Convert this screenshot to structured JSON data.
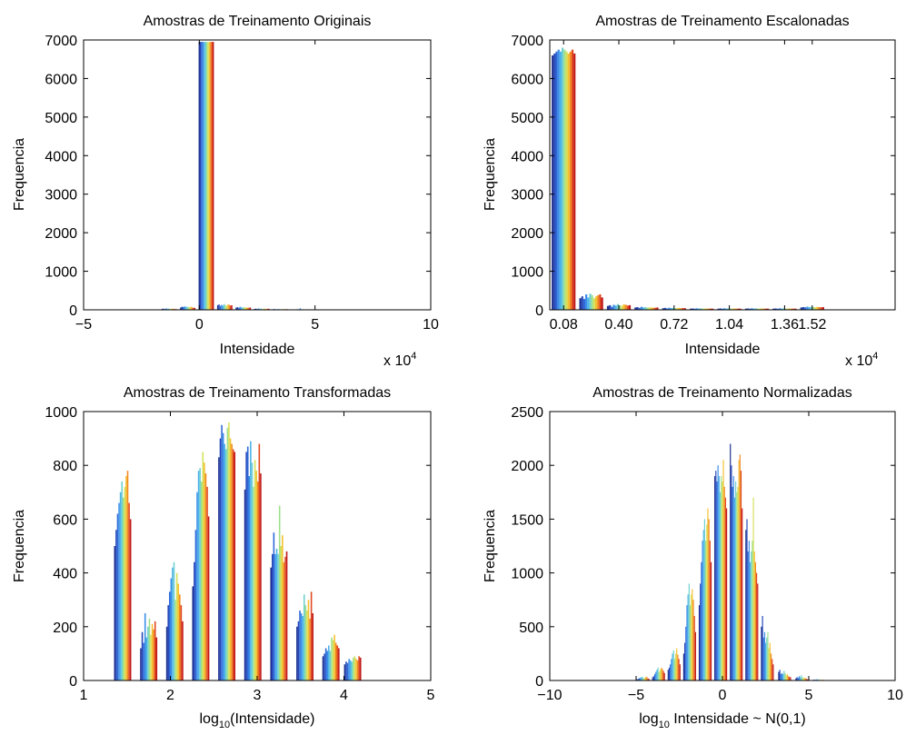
{
  "chart_data": [
    {
      "type": "bar",
      "title": "Amostras de Treinamento Originais",
      "xlabel": "Intensidade",
      "ylabel": "Frequencia",
      "x_exponent_base": "x 10",
      "x_exponent_power": "4",
      "xlim": [
        -5,
        10
      ],
      "ylim": [
        0,
        7000
      ],
      "xticks": [
        "−5",
        "0",
        "5",
        "10"
      ],
      "yticks": [
        "0",
        "1000",
        "2000",
        "3000",
        "4000",
        "5000",
        "6000",
        "7000"
      ],
      "groups": [
        {
          "x": -2.5,
          "values": [
            5,
            8,
            6,
            10,
            7,
            9,
            5,
            6,
            8,
            7,
            6,
            5
          ]
        },
        {
          "x": -1.3,
          "values": [
            25,
            30,
            20,
            35,
            28,
            32,
            22,
            26,
            30,
            24,
            20,
            18
          ]
        },
        {
          "x": -0.5,
          "values": [
            60,
            80,
            70,
            90,
            75,
            85,
            65,
            70,
            80,
            60,
            55,
            50
          ]
        },
        {
          "x": 0.3,
          "values": [
            6950,
            6950,
            6950,
            6950,
            6950,
            6950,
            6950,
            6950,
            6950,
            6950,
            6950,
            6950
          ]
        },
        {
          "x": 1.1,
          "values": [
            120,
            140,
            100,
            130,
            110,
            150,
            120,
            100,
            140,
            130,
            110,
            120
          ]
        },
        {
          "x": 1.9,
          "values": [
            60,
            70,
            50,
            80,
            60,
            70,
            55,
            65,
            60,
            50,
            55,
            60
          ]
        },
        {
          "x": 2.7,
          "values": [
            25,
            30,
            20,
            35,
            28,
            30,
            22,
            25,
            30,
            20,
            25,
            28
          ]
        },
        {
          "x": 3.5,
          "values": [
            15,
            20,
            12,
            18,
            15,
            20,
            12,
            15,
            18,
            14,
            16,
            15
          ]
        },
        {
          "x": 4.5,
          "values": [
            10,
            15,
            8,
            40,
            12,
            15,
            10,
            12,
            15,
            10,
            12,
            10
          ]
        },
        {
          "x": 5.6,
          "values": [
            5,
            8,
            6,
            10,
            7,
            9,
            5,
            6,
            8,
            7,
            6,
            5
          ]
        }
      ]
    },
    {
      "type": "bar",
      "title": "Amostras de Treinamento Escalonadas",
      "xlabel": "Intensidade",
      "ylabel": "Frequencia",
      "x_exponent_base": "x 10",
      "x_exponent_power": "4",
      "xlim": [
        0,
        2
      ],
      "ylim": [
        0,
        7000
      ],
      "xtick_values": [
        0.08,
        0.4,
        0.72,
        1.04,
        1.36,
        1.52
      ],
      "xticks": [
        "0.08",
        "0.40",
        "0.72",
        "1.04",
        "1.36",
        "1.52"
      ],
      "yticks": [
        "0",
        "1000",
        "2000",
        "3000",
        "4000",
        "5000",
        "6000",
        "7000"
      ],
      "groups": [
        {
          "x": 0.08,
          "values": [
            6600,
            6650,
            6700,
            6750,
            6700,
            6800,
            6750,
            6700,
            6650,
            6700,
            6750,
            6650
          ]
        },
        {
          "x": 0.24,
          "values": [
            300,
            350,
            280,
            400,
            320,
            420,
            380,
            300,
            350,
            380,
            400,
            320
          ]
        },
        {
          "x": 0.4,
          "values": [
            100,
            120,
            80,
            130,
            110,
            150,
            120,
            100,
            140,
            130,
            110,
            120
          ]
        },
        {
          "x": 0.56,
          "values": [
            60,
            70,
            50,
            80,
            60,
            70,
            55,
            65,
            60,
            50,
            55,
            60
          ]
        },
        {
          "x": 0.72,
          "values": [
            40,
            50,
            35,
            55,
            45,
            50,
            40,
            45,
            50,
            40,
            45,
            40
          ]
        },
        {
          "x": 0.88,
          "values": [
            30,
            35,
            28,
            40,
            32,
            38,
            30,
            32,
            35,
            30,
            32,
            30
          ]
        },
        {
          "x": 1.04,
          "values": [
            30,
            35,
            28,
            40,
            32,
            38,
            30,
            32,
            35,
            30,
            32,
            30
          ]
        },
        {
          "x": 1.2,
          "values": [
            30,
            35,
            28,
            40,
            32,
            38,
            30,
            32,
            35,
            30,
            32,
            30
          ]
        },
        {
          "x": 1.36,
          "values": [
            30,
            35,
            28,
            40,
            32,
            38,
            30,
            32,
            35,
            30,
            32,
            30
          ]
        },
        {
          "x": 1.52,
          "values": [
            60,
            70,
            65,
            80,
            70,
            75,
            70,
            65,
            75,
            70,
            65,
            70
          ]
        }
      ]
    },
    {
      "type": "bar",
      "title": "Amostras de Treinamento Transformadas",
      "xlabel_pre": "log",
      "xlabel_sub": "10",
      "xlabel_post": "(Intensidade)",
      "ylabel": "Frequencia",
      "xlim": [
        1,
        5
      ],
      "ylim": [
        0,
        1000
      ],
      "xticks": [
        "1",
        "2",
        "3",
        "4",
        "5"
      ],
      "yticks": [
        "0",
        "200",
        "400",
        "600",
        "800",
        "1000"
      ],
      "groups": [
        {
          "x": 1.45,
          "values": [
            500,
            560,
            620,
            660,
            700,
            740,
            680,
            720,
            760,
            780,
            660,
            600
          ]
        },
        {
          "x": 1.75,
          "values": [
            120,
            180,
            140,
            250,
            160,
            200,
            230,
            170,
            210,
            190,
            220,
            160
          ]
        },
        {
          "x": 2.05,
          "values": [
            200,
            280,
            330,
            380,
            420,
            440,
            300,
            400,
            360,
            320,
            280,
            220
          ]
        },
        {
          "x": 2.35,
          "values": [
            350,
            440,
            560,
            700,
            780,
            790,
            740,
            850,
            810,
            770,
            720,
            610
          ]
        },
        {
          "x": 2.65,
          "values": [
            830,
            900,
            950,
            920,
            880,
            860,
            940,
            960,
            900,
            880,
            860,
            850
          ]
        },
        {
          "x": 2.95,
          "values": [
            710,
            850,
            870,
            760,
            890,
            810,
            720,
            820,
            780,
            740,
            880,
            770
          ]
        },
        {
          "x": 3.25,
          "values": [
            420,
            470,
            550,
            470,
            490,
            470,
            650,
            500,
            540,
            440,
            460,
            480
          ]
        },
        {
          "x": 3.55,
          "values": [
            200,
            220,
            260,
            250,
            240,
            320,
            280,
            260,
            300,
            230,
            330,
            250
          ]
        },
        {
          "x": 3.85,
          "values": [
            90,
            100,
            120,
            110,
            130,
            110,
            160,
            150,
            170,
            140,
            130,
            120
          ]
        },
        {
          "x": 4.1,
          "values": [
            60,
            70,
            65,
            80,
            75,
            70,
            85,
            90,
            80,
            75,
            90,
            85
          ]
        }
      ]
    },
    {
      "type": "bar",
      "title": "Amostras de Treinamento Normalizadas",
      "xlabel_pre": "log",
      "xlabel_sub": "10",
      "xlabel_post": " Intensidade ~ N(0,1)",
      "ylabel": "Frequencia",
      "xlim": [
        -10,
        10
      ],
      "ylim": [
        0,
        2500
      ],
      "xticks": [
        "−10",
        "−5",
        "0",
        "5",
        "10"
      ],
      "yticks": [
        "0",
        "500",
        "1000",
        "1500",
        "2000",
        "2500"
      ],
      "groups": [
        {
          "x": -4.6,
          "values": [
            10,
            15,
            20,
            25,
            30,
            35,
            20,
            25,
            30,
            35,
            20,
            15
          ]
        },
        {
          "x": -3.7,
          "values": [
            30,
            40,
            60,
            80,
            100,
            120,
            80,
            100,
            120,
            110,
            90,
            70
          ]
        },
        {
          "x": -2.8,
          "values": [
            100,
            120,
            150,
            200,
            250,
            280,
            200,
            250,
            300,
            240,
            200,
            150
          ]
        },
        {
          "x": -1.9,
          "values": [
            250,
            350,
            500,
            700,
            800,
            900,
            700,
            800,
            850,
            750,
            600,
            450
          ]
        },
        {
          "x": -1.0,
          "values": [
            700,
            900,
            1100,
            1300,
            1400,
            1500,
            1300,
            1450,
            1600,
            1500,
            1300,
            1100
          ]
        },
        {
          "x": -0.1,
          "values": [
            1900,
            1950,
            1850,
            2000,
            1900,
            1750,
            1900,
            1850,
            2050,
            1800,
            1700,
            1600
          ]
        },
        {
          "x": 0.8,
          "values": [
            2200,
            2000,
            1800,
            1900,
            1700,
            1850,
            1750,
            1800,
            2050,
            2100,
            1950,
            1600
          ]
        },
        {
          "x": 1.7,
          "values": [
            1400,
            1500,
            1200,
            1300,
            1100,
            1200,
            1300,
            1700,
            1200,
            1100,
            1000,
            900
          ]
        },
        {
          "x": 2.6,
          "values": [
            500,
            600,
            400,
            450,
            350,
            400,
            450,
            300,
            350,
            250,
            200,
            150
          ]
        },
        {
          "x": 3.6,
          "values": [
            80,
            100,
            60,
            70,
            60,
            90,
            70,
            50,
            60,
            40,
            35,
            30
          ]
        },
        {
          "x": 4.6,
          "values": [
            20,
            30,
            25,
            40,
            30,
            50,
            30,
            20,
            25,
            20,
            15,
            10
          ]
        },
        {
          "x": 5.6,
          "values": [
            5,
            8,
            6,
            10,
            8,
            12,
            6,
            5,
            8,
            6,
            5,
            4
          ]
        }
      ]
    }
  ],
  "series_colors": [
    "#1c2f8f",
    "#2547b8",
    "#2f6ad8",
    "#3a8ee8",
    "#4db2e8",
    "#6fd0d0",
    "#9ee08a",
    "#d5e05a",
    "#f5c030",
    "#f08a20",
    "#e04820",
    "#c01818"
  ]
}
